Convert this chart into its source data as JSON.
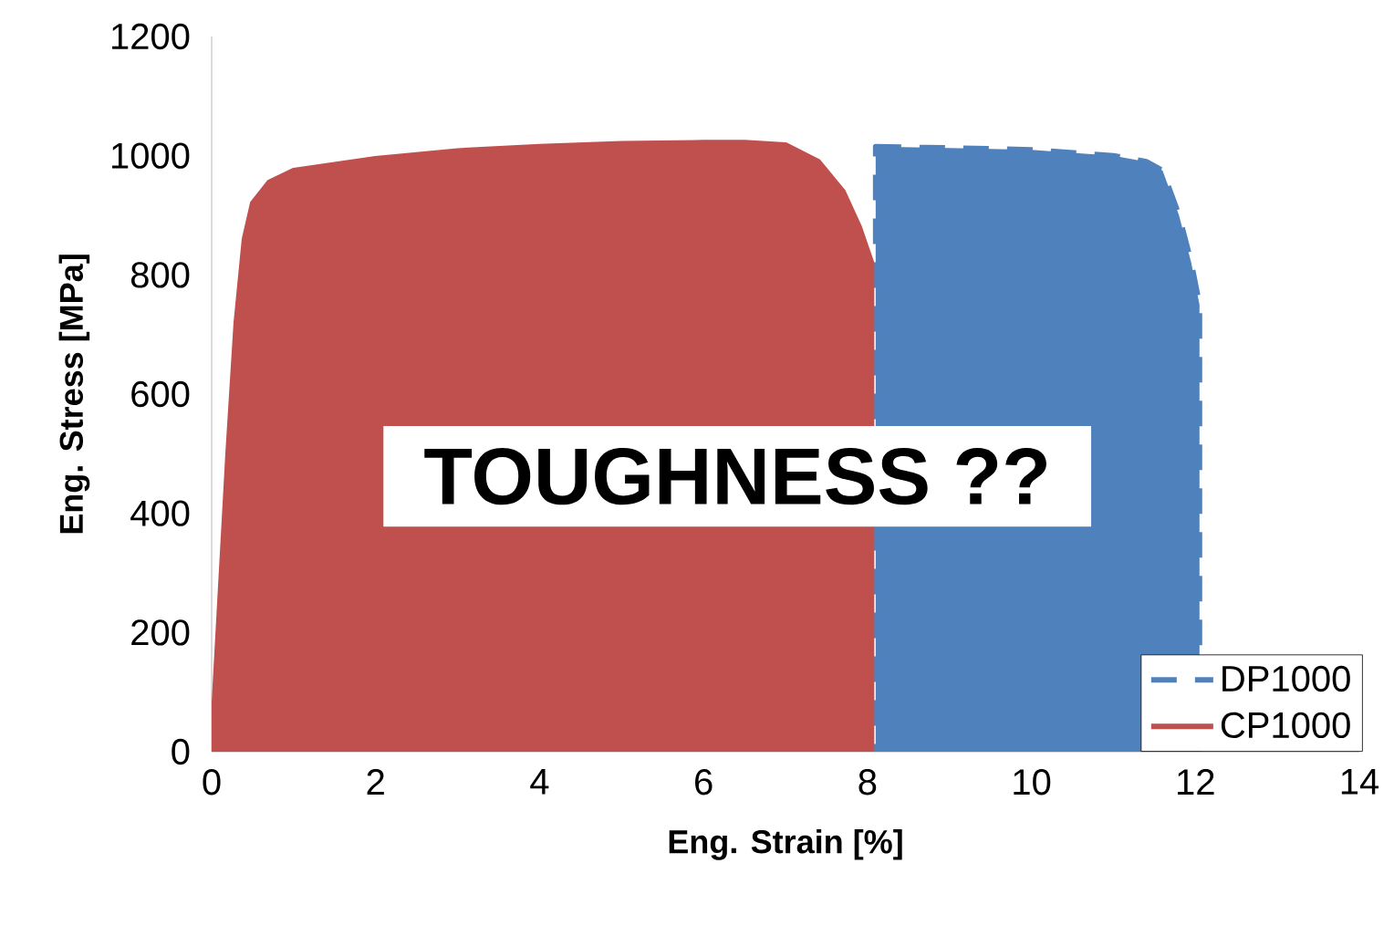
{
  "chart_data": {
    "type": "area",
    "xlabel": "Eng. Strain [%]",
    "ylabel": "Eng. Stress [MPa]",
    "xlim": [
      0,
      14
    ],
    "xticks": [
      0,
      2,
      4,
      6,
      8,
      10,
      12,
      14
    ],
    "ylim": [
      0,
      1200
    ],
    "yticks": [
      0,
      200,
      400,
      600,
      800,
      1000,
      1200
    ],
    "grid": false,
    "legend": "bottom right",
    "annotations": [
      "TOUGHNESS ??"
    ],
    "series": [
      {
        "name": "DP1000",
        "color": "#4f81bd",
        "line_style": "dashed",
        "x": [
          8.1,
          9,
          10,
          11,
          11.4,
          11.6,
          11.8,
          11.95,
          12.05
        ],
        "values": [
          1015,
          1013,
          1010,
          1000,
          990,
          975,
          900,
          820,
          750
        ]
      },
      {
        "name": "CP1000",
        "color": "#c0504d",
        "line_style": "solid",
        "x": [
          0,
          0.1,
          0.2,
          0.3,
          0.4,
          0.5,
          0.7,
          1.0,
          1.5,
          2,
          3,
          4,
          5,
          6,
          6.5,
          7,
          7.4,
          7.7,
          7.9,
          8.05
        ],
        "values": [
          0,
          250,
          500,
          720,
          860,
          920,
          955,
          975,
          985,
          995,
          1008,
          1015,
          1020,
          1022,
          1022,
          1018,
          990,
          940,
          880,
          820
        ]
      }
    ]
  }
}
